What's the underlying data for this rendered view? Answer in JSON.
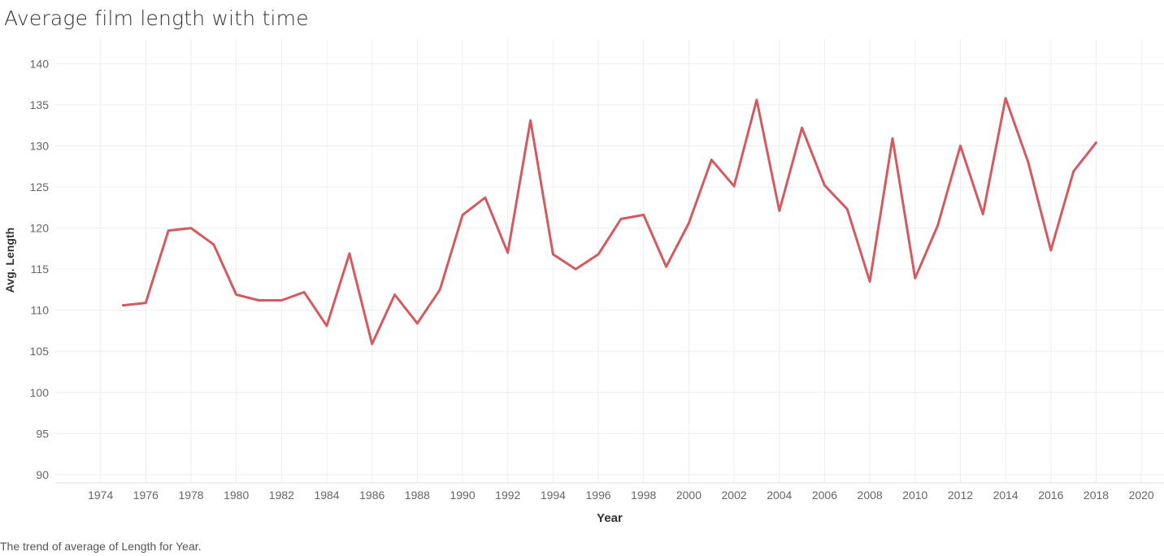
{
  "title": "Average film length with time",
  "caption": "The trend of average of Length for Year.",
  "colors": {
    "line": "#d45a60",
    "grid": "#eeeeee",
    "tick_text": "#666666",
    "axis_label": "#333333"
  },
  "chart_data": {
    "type": "line",
    "xlabel": "Year",
    "ylabel": "Avg. Length",
    "xlim": [
      1972,
      2021
    ],
    "ylim": [
      89,
      143
    ],
    "x_ticks": [
      1974,
      1976,
      1978,
      1980,
      1982,
      1984,
      1986,
      1988,
      1990,
      1992,
      1994,
      1996,
      1998,
      2000,
      2002,
      2004,
      2006,
      2008,
      2010,
      2012,
      2014,
      2016,
      2018,
      2020
    ],
    "y_ticks": [
      90,
      95,
      100,
      105,
      110,
      115,
      120,
      125,
      130,
      135,
      140
    ],
    "grid": true,
    "legend": "none",
    "x": [
      1975,
      1976,
      1977,
      1978,
      1979,
      1980,
      1981,
      1982,
      1983,
      1984,
      1985,
      1986,
      1987,
      1988,
      1989,
      1990,
      1991,
      1992,
      1993,
      1994,
      1995,
      1996,
      1997,
      1998,
      1999,
      2000,
      2001,
      2002,
      2003,
      2004,
      2005,
      2006,
      2007,
      2008,
      2009,
      2010,
      2011,
      2012,
      2013,
      2014,
      2015,
      2016,
      2017,
      2018
    ],
    "values": [
      110.6,
      110.9,
      119.7,
      120.0,
      118.0,
      111.9,
      111.2,
      111.2,
      112.2,
      108.1,
      116.9,
      105.9,
      111.9,
      108.4,
      112.5,
      121.6,
      123.7,
      117.0,
      133.1,
      116.8,
      115.0,
      116.8,
      121.1,
      121.6,
      115.3,
      120.6,
      128.3,
      125.1,
      135.6,
      122.1,
      132.2,
      125.2,
      122.3,
      113.5,
      130.9,
      113.9,
      120.3,
      130.0,
      121.7,
      135.8,
      128.0,
      117.3,
      126.9,
      130.4
    ]
  }
}
